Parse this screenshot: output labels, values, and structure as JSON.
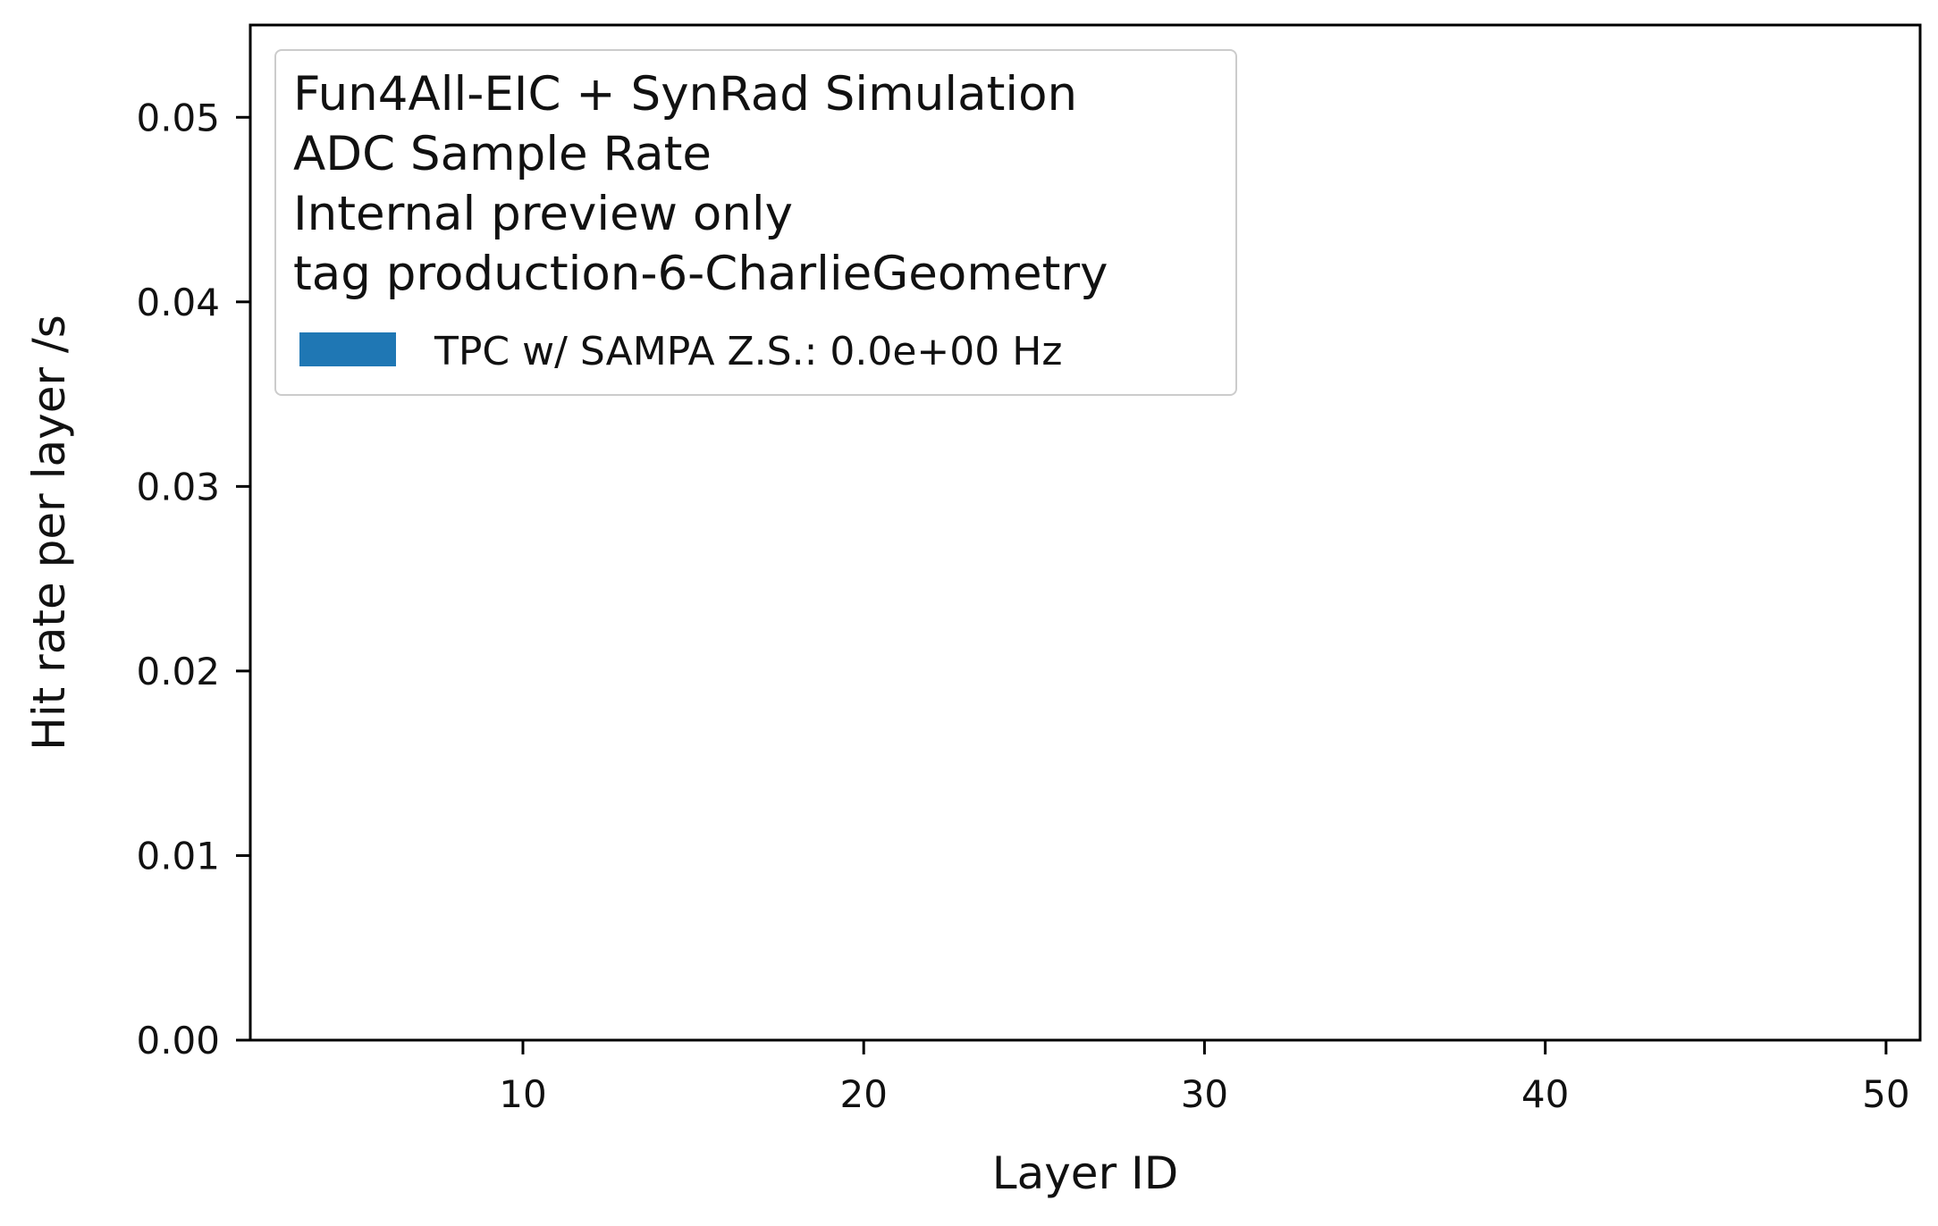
{
  "chart_data": {
    "type": "bar",
    "xlabel": "Layer ID",
    "ylabel": "Hit rate per layer /s",
    "xlim": [
      2,
      51
    ],
    "ylim": [
      0,
      0.055
    ],
    "x_ticks": [
      {
        "value": 10,
        "label": "10"
      },
      {
        "value": 20,
        "label": "20"
      },
      {
        "value": 30,
        "label": "30"
      },
      {
        "value": 40,
        "label": "40"
      },
      {
        "value": 50,
        "label": "50"
      }
    ],
    "y_ticks": [
      {
        "value": 0.0,
        "label": "0.00"
      },
      {
        "value": 0.01,
        "label": "0.01"
      },
      {
        "value": 0.02,
        "label": "0.02"
      },
      {
        "value": 0.03,
        "label": "0.03"
      },
      {
        "value": 0.04,
        "label": "0.04"
      },
      {
        "value": 0.05,
        "label": "0.05"
      }
    ],
    "grid": false,
    "legend": {
      "placement": "top-left",
      "title_lines": [
        "Fun4All-EIC + SynRad Simulation",
        "ADC Sample Rate",
        "Internal preview only",
        "tag production-6-CharlieGeometry"
      ],
      "entries": [
        {
          "label": "TPC w/ SAMPA Z.S.: 0.0e+00 Hz",
          "color": "#1f77b4"
        }
      ]
    },
    "series": [
      {
        "name": "TPC w/ SAMPA Z.S.: 0.0e+00 Hz",
        "color": "#1f77b4",
        "x": [],
        "values": []
      }
    ]
  }
}
